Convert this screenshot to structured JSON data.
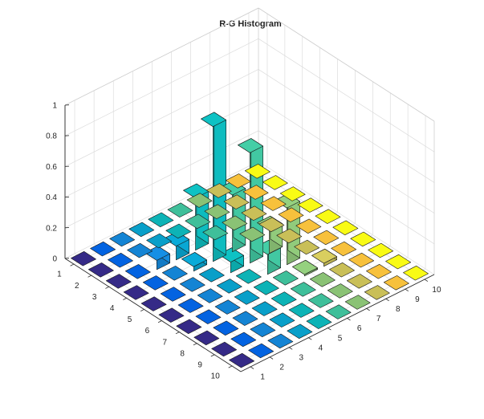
{
  "chart_data": {
    "type": "bar3",
    "title": "R-G Histogram",
    "xlabel": "",
    "ylabel": "",
    "zlabel": "",
    "grid": true,
    "colormap": "parula",
    "x_ticks": [
      "1",
      "2",
      "3",
      "4",
      "5",
      "6",
      "7",
      "8",
      "9",
      "10"
    ],
    "y_ticks": [
      "1",
      "2",
      "3",
      "4",
      "5",
      "6",
      "7",
      "8",
      "9",
      "10"
    ],
    "z_ticks": [
      "0",
      "0.2",
      "0.4",
      "0.6",
      "0.8",
      "1"
    ],
    "zlim": [
      0,
      1
    ],
    "values": [
      [
        0,
        0,
        0,
        0,
        0,
        0,
        0,
        0,
        0,
        0
      ],
      [
        0,
        0,
        0,
        0,
        0,
        0,
        0,
        0,
        0,
        0
      ],
      [
        0,
        0,
        0.06,
        0.09,
        0.34,
        0,
        0,
        0,
        0,
        0
      ],
      [
        0,
        0,
        0,
        0.03,
        0.88,
        0.37,
        0,
        0,
        0,
        0
      ],
      [
        0,
        0,
        0,
        0,
        0.07,
        0.72,
        0.15,
        0,
        0,
        0
      ],
      [
        0,
        0,
        0,
        0,
        0,
        0.13,
        0.37,
        0,
        0,
        0
      ],
      [
        0,
        0,
        0,
        0,
        0,
        0,
        0.01,
        0.02,
        0,
        0
      ],
      [
        0,
        0,
        0,
        0,
        0,
        0,
        0,
        0,
        0,
        0
      ],
      [
        0,
        0,
        0,
        0,
        0,
        0,
        0,
        0,
        0,
        0
      ],
      [
        0,
        0,
        0,
        0,
        0,
        0,
        0,
        0,
        0,
        0
      ]
    ]
  }
}
